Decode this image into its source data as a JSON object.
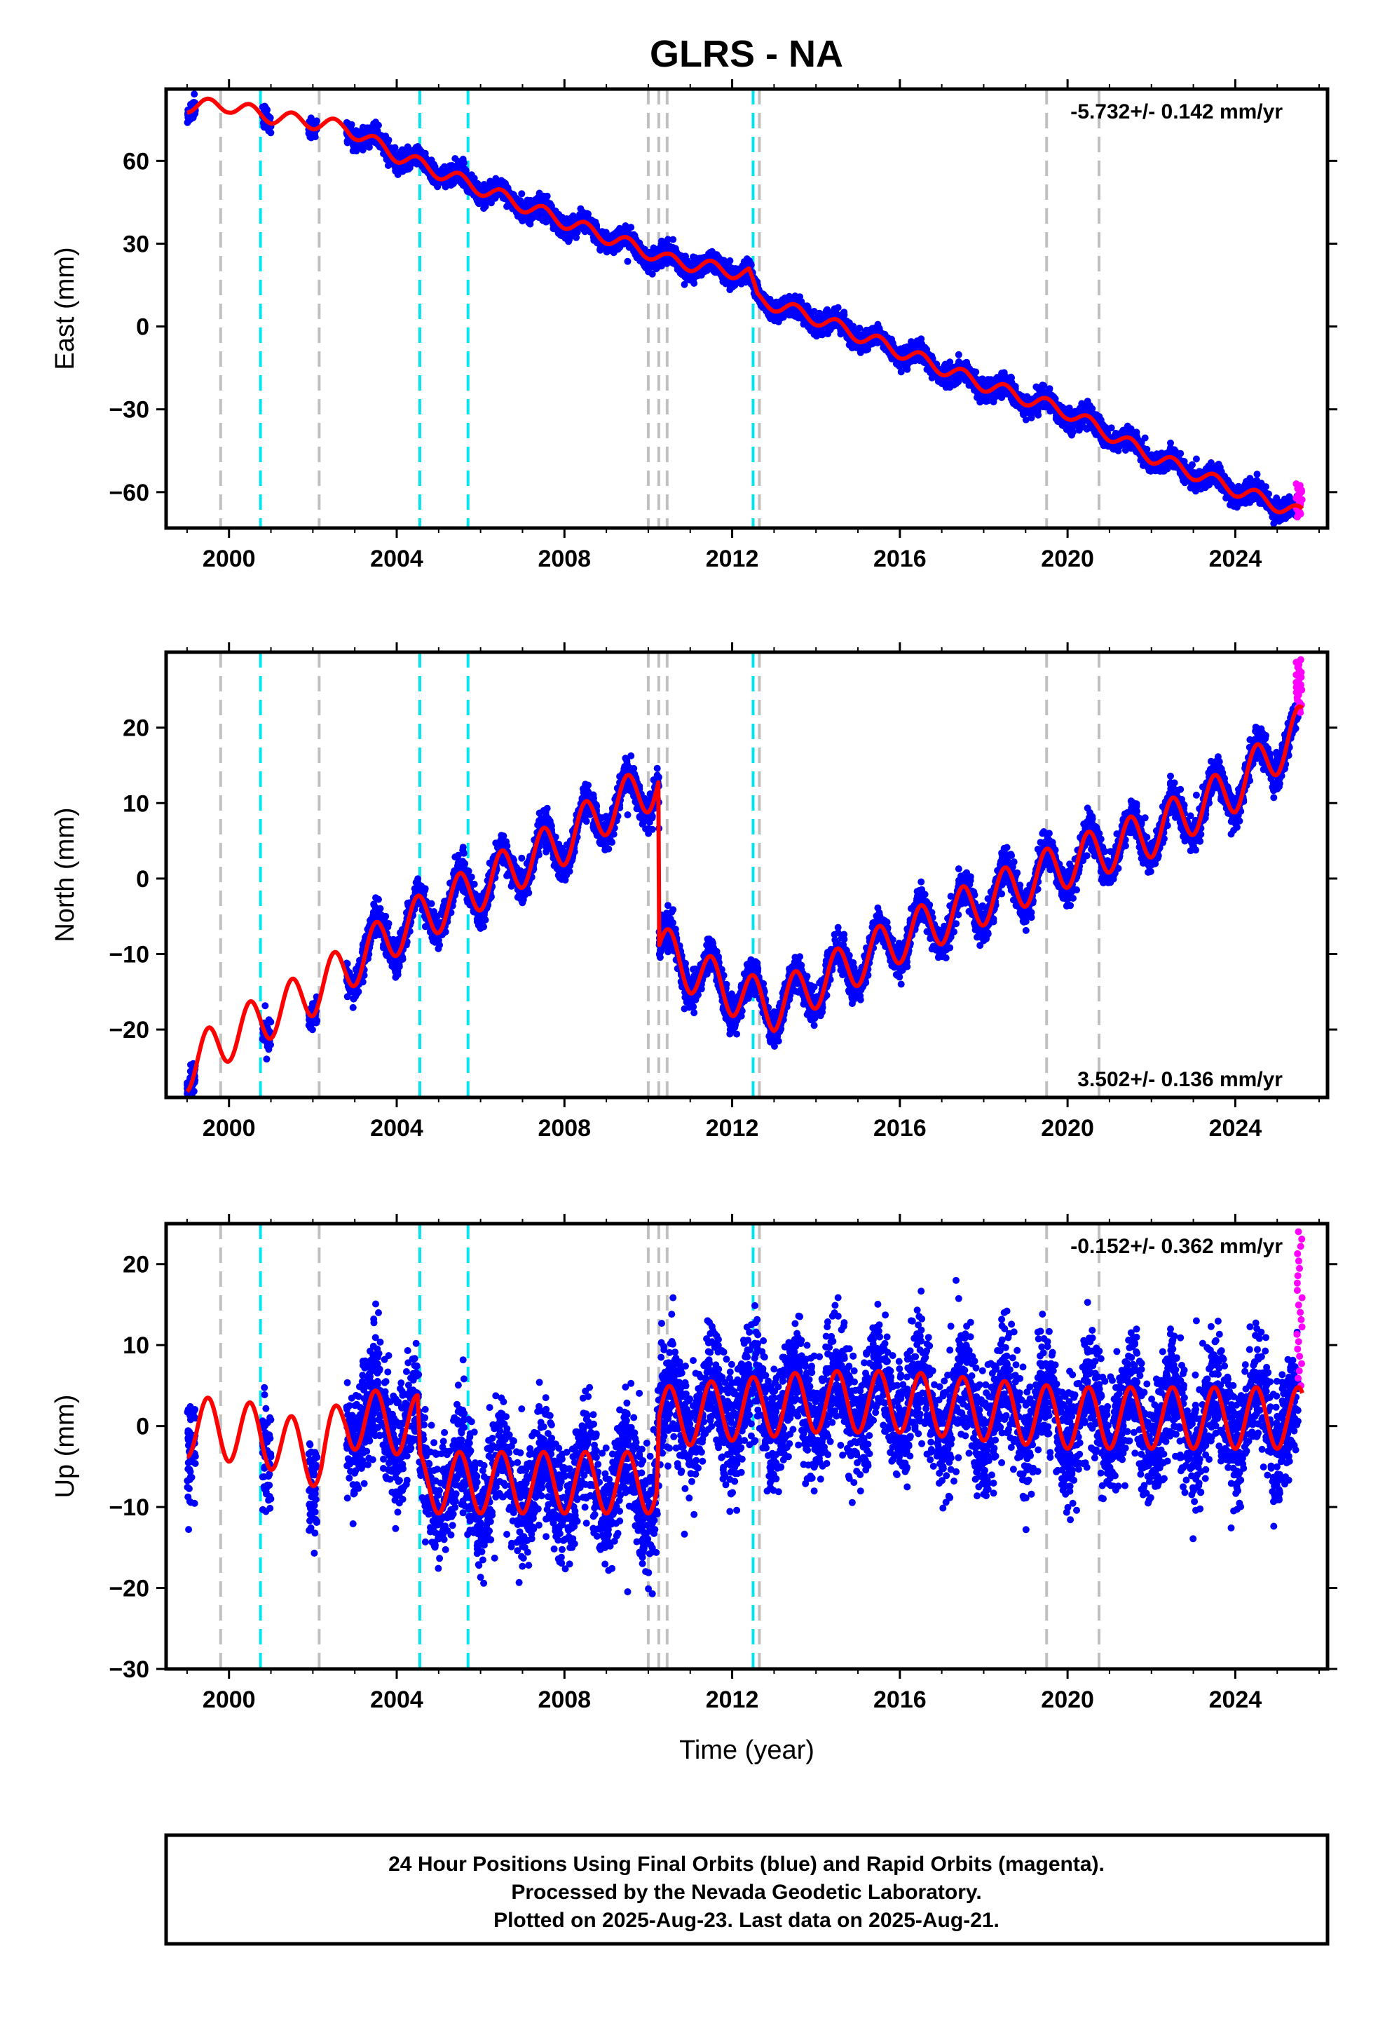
{
  "title": "GLRS - NA",
  "colors": {
    "final": "#0000ff",
    "rapid": "#ff00ff",
    "model": "#ff0000",
    "equipment_change": "#00e5ee",
    "other_event": "#c0c0c0"
  },
  "events": {
    "gray": [
      1999.8,
      2002.15,
      2010.0,
      2010.25,
      2010.45,
      2012.65,
      2019.5,
      2020.75
    ],
    "cyan": [
      2000.75,
      2004.55,
      2005.7,
      2012.5
    ]
  },
  "chart_data": [
    {
      "type": "scatter",
      "name": "east",
      "ylabel": "East (mm)",
      "xlim": [
        1998.5,
        2026.2
      ],
      "ylim": [
        -73,
        86
      ],
      "yticks": [
        -60,
        -30,
        0,
        30,
        60
      ],
      "ytick_labels": [
        "−60",
        "−30",
        "0",
        "30",
        "60"
      ],
      "xticks": [
        2000,
        2004,
        2008,
        2012,
        2016,
        2020,
        2024
      ],
      "xtick_labels": [
        "2000",
        "2004",
        "2008",
        "2012",
        "2016",
        "2020",
        "2024"
      ],
      "rate_label": "-5.732+/- 0.142 mm/yr",
      "rate_position": "top-right",
      "model": {
        "knots_x": [
          1999.0,
          2000.0,
          2001.0,
          2002.0,
          2002.8,
          2004.0,
          2006.0,
          2008.0,
          2010.0,
          2010.45,
          2012.4,
          2012.6,
          2014.0,
          2016.0,
          2018.0,
          2020.0,
          2021.0,
          2022.0,
          2024.0,
          2025.6
        ],
        "knots_y": [
          80,
          80,
          76,
          74,
          72,
          62,
          50,
          38,
          27,
          24,
          19,
          10,
          3,
          -9,
          -21,
          -31,
          -39,
          -47,
          -59,
          -68
        ],
        "seasonal_amplitude": 2.5
      },
      "scatter": {
        "segments": [
          [
            1999.0,
            1999.2
          ],
          [
            2000.8,
            2001.0
          ],
          [
            2001.9,
            2002.1
          ],
          [
            2002.8,
            2025.5
          ]
        ],
        "noise_sd": 1.8
      },
      "rapid": {
        "x_range": [
          2025.45,
          2025.6
        ],
        "y_range": [
          -69,
          -57
        ]
      }
    },
    {
      "type": "scatter",
      "name": "north",
      "ylabel": "North (mm)",
      "xlim": [
        1998.5,
        2026.2
      ],
      "ylim": [
        -29,
        30
      ],
      "yticks": [
        -20,
        -10,
        0,
        10,
        20
      ],
      "ytick_labels": [
        "−20",
        "−10",
        "0",
        "10",
        "20"
      ],
      "xticks": [
        2000,
        2004,
        2008,
        2012,
        2016,
        2020,
        2024
      ],
      "xtick_labels": [
        "2000",
        "2004",
        "2008",
        "2012",
        "2016",
        "2020",
        "2024"
      ],
      "rate_label": "3.502+/- 0.136 mm/yr",
      "rate_position": "bottom-right",
      "model": {
        "knots_x": [
          1999.0,
          2000.0,
          2001.0,
          2002.0,
          2003.0,
          2004.0,
          2005.0,
          2006.0,
          2007.0,
          2008.0,
          2009.0,
          2010.0,
          2010.25,
          2010.26,
          2011.0,
          2012.0,
          2013.0,
          2014.0,
          2016.0,
          2018.0,
          2020.0,
          2022.0,
          2024.0,
          2025.6
        ],
        "knots_y": [
          -25,
          -21,
          -18,
          -15,
          -11,
          -7,
          -4,
          -1,
          2,
          5,
          9,
          12,
          13,
          -9,
          -12,
          -15,
          -17,
          -14,
          -8,
          -3,
          2,
          6,
          12,
          20
        ],
        "seasonal_amplitude": 3.2
      },
      "scatter": {
        "segments": [
          [
            1999.0,
            1999.2
          ],
          [
            2000.8,
            2001.0
          ],
          [
            2001.9,
            2002.1
          ],
          [
            2002.8,
            2025.5
          ]
        ],
        "noise_sd": 1.1
      },
      "rapid": {
        "x_range": [
          2025.45,
          2025.6
        ],
        "y_range": [
          22,
          29
        ]
      }
    },
    {
      "type": "scatter",
      "name": "up",
      "ylabel": "Up (mm)",
      "xlim": [
        1998.5,
        2026.2
      ],
      "ylim": [
        -30,
        25
      ],
      "yticks": [
        -30,
        -20,
        -10,
        0,
        10,
        20
      ],
      "ytick_labels": [
        "−30",
        "−20",
        "−10",
        "0",
        "10",
        "20"
      ],
      "xticks": [
        2000,
        2004,
        2008,
        2012,
        2016,
        2020,
        2024
      ],
      "xtick_labels": [
        "2000",
        "2004",
        "2008",
        "2012",
        "2016",
        "2020",
        "2024"
      ],
      "xlabel": "Time (year)",
      "rate_label": "-0.152+/- 0.362 mm/yr",
      "rate_position": "top-right",
      "model": {
        "knots_x": [
          1999.0,
          2000.7,
          2002.2,
          2002.8,
          2004.5,
          2004.56,
          2006.0,
          2008.0,
          2010.2,
          2010.26,
          2012.0,
          2014.0,
          2016.0,
          2018.0,
          2020.0,
          2022.0,
          2024.0,
          2025.6
        ],
        "knots_y": [
          0,
          -1,
          -4,
          1,
          0,
          -7,
          -7,
          -7,
          -7,
          1,
          2,
          3,
          3,
          2,
          1,
          1,
          1,
          1
        ],
        "seasonal_amplitude": 3.8
      },
      "scatter": {
        "segments": [
          [
            1999.0,
            1999.2
          ],
          [
            2000.8,
            2001.0
          ],
          [
            2001.9,
            2002.1
          ],
          [
            2002.8,
            2025.5
          ]
        ],
        "noise_sd": 3.6
      },
      "rapid": {
        "x_range": [
          2025.45,
          2025.6
        ],
        "y_range": [
          5,
          24
        ]
      }
    }
  ],
  "footer": {
    "line1": "24 Hour Positions Using Final Orbits (blue) and Rapid Orbits (magenta).",
    "line2": "Processed by the Nevada Geodetic Laboratory.",
    "line3": "Plotted on 2025-Aug-23. Last data on 2025-Aug-21."
  }
}
